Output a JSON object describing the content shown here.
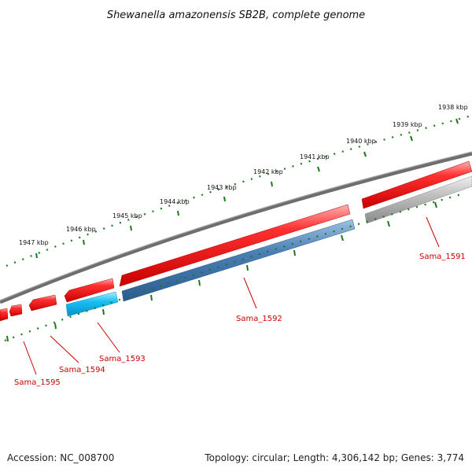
{
  "title": "Shewanella amazonensis SB2B, complete genome",
  "footer": {
    "accession": "Accession: NC_008700",
    "summary": "Topology: circular; Length: 4,306,142 bp; Genes: 3,774"
  },
  "scale_labels": [
    "1938 kbp",
    "1939 kbp",
    "1940 kbp",
    "1941 kbp",
    "1942 kbp",
    "1943 kbp",
    "1944 kbp",
    "1945 kbp",
    "1946 kbp",
    "1947 kbp"
  ],
  "gene_labels": [
    "Sama_1591",
    "Sama_1592",
    "Sama_1593",
    "Sama_1594",
    "Sama_1595"
  ],
  "colors": {
    "forward_gene": "#e60000",
    "reverse_blue": "#4a7fb5",
    "reverse_cyan": "#10b8f0",
    "reverse_gray": "#b3b3b3",
    "backbone": "#777777",
    "ticks": "#1a7a1a",
    "label": "#cc0000"
  }
}
